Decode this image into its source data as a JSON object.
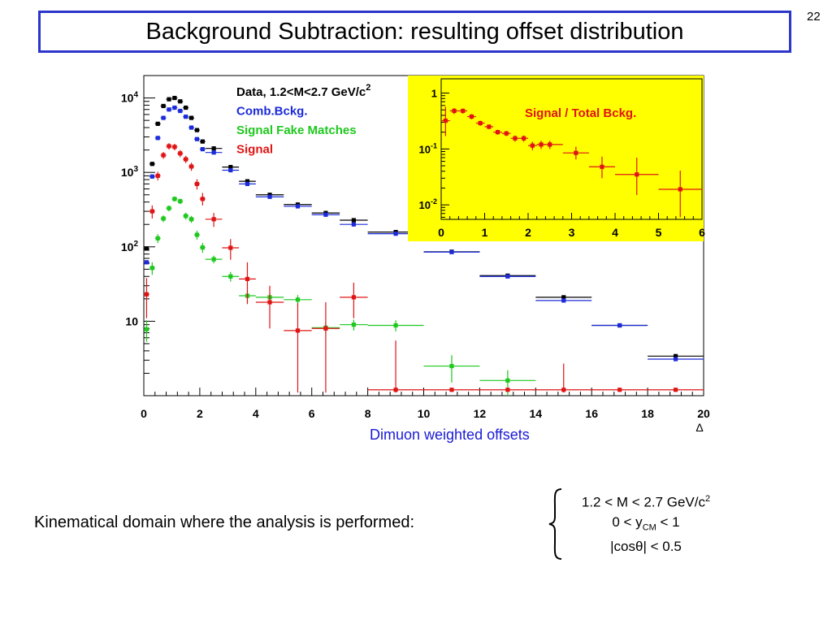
{
  "slide": {
    "title": "Background Subtraction: resulting offset distribution",
    "page_number": "22",
    "x_caption": "Dimuon weighted offsets",
    "caption_color": "#1a1ad6",
    "kinematic_label": "Kinematical domain where the analysis is performed:",
    "cond1_prefix": "1.2 < M < 2.7 GeV/c",
    "cond1_sup": "2",
    "cond2_prefix": "0 < y",
    "cond2_sub": "CM",
    "cond2_suffix": " < 1",
    "cond3": "|cosθ| < 0.5",
    "title_border_color": "#2b35c9"
  },
  "chart_data": [
    {
      "type": "scatter",
      "title": "",
      "xlabel": "Δ",
      "ylabel": "",
      "yscale": "log",
      "xlim": [
        0,
        20
      ],
      "ylim": [
        1.0,
        20000
      ],
      "x_ticks": [
        "0",
        "2",
        "4",
        "6",
        "8",
        "10",
        "12",
        "14",
        "16",
        "18",
        "20"
      ],
      "y_ticks": [
        {
          "value": 10,
          "base": "10",
          "exp": ""
        },
        {
          "value": 100,
          "base": "10",
          "exp": "2"
        },
        {
          "value": 1000,
          "base": "10",
          "exp": "3"
        },
        {
          "value": 10000,
          "base": "10",
          "exp": "4"
        }
      ],
      "legend_position": "top-center",
      "legend": [
        {
          "label": "Data, 1.2<M<2.7 GeV/c",
          "sup": "2",
          "color": "#000000"
        },
        {
          "label": "Comb.Bckg.",
          "sup": "",
          "color": "#1c2bd9"
        },
        {
          "label": "Signal Fake Matches",
          "sup": "",
          "color": "#1ec81e"
        },
        {
          "label": "Signal",
          "sup": "",
          "color": "#e01414"
        }
      ],
      "series": [
        {
          "name": "Data, 1.2<M<2.7 GeV/c²",
          "color": "#000000",
          "points": [
            {
              "x": 0.1,
              "y": 95
            },
            {
              "x": 0.3,
              "y": 1300
            },
            {
              "x": 0.5,
              "y": 4500
            },
            {
              "x": 0.7,
              "y": 7800
            },
            {
              "x": 0.9,
              "y": 9600
            },
            {
              "x": 1.1,
              "y": 10000
            },
            {
              "x": 1.3,
              "y": 9000
            },
            {
              "x": 1.5,
              "y": 7400
            },
            {
              "x": 1.7,
              "y": 5400
            },
            {
              "x": 1.9,
              "y": 3700
            },
            {
              "x": 2.1,
              "y": 2600
            },
            {
              "x": 2.5,
              "y": 2100,
              "dx": 0.3
            },
            {
              "x": 3.1,
              "y": 1180,
              "dx": 0.3
            },
            {
              "x": 3.7,
              "y": 760,
              "dx": 0.3
            },
            {
              "x": 4.5,
              "y": 500,
              "dx": 0.5
            },
            {
              "x": 5.5,
              "y": 370,
              "dx": 0.5
            },
            {
              "x": 6.5,
              "y": 285,
              "dx": 0.5
            },
            {
              "x": 7.5,
              "y": 228,
              "dx": 0.5
            },
            {
              "x": 9.0,
              "y": 158,
              "dx": 1.0
            },
            {
              "x": 11.0,
              "y": 86,
              "dx": 1.0
            },
            {
              "x": 13.0,
              "y": 41,
              "dx": 1.0
            },
            {
              "x": 15.0,
              "y": 21,
              "dx": 1.0
            },
            {
              "x": 17.0,
              "y": 8.8,
              "dx": 1.0
            },
            {
              "x": 19.0,
              "y": 3.4,
              "dx": 1.0
            }
          ]
        },
        {
          "name": "Comb.Bckg.",
          "color": "#1c2bd9",
          "points": [
            {
              "x": 0.1,
              "y": 62
            },
            {
              "x": 0.3,
              "y": 880
            },
            {
              "x": 0.5,
              "y": 2900
            },
            {
              "x": 0.7,
              "y": 5400
            },
            {
              "x": 0.9,
              "y": 7000
            },
            {
              "x": 1.1,
              "y": 7400
            },
            {
              "x": 1.3,
              "y": 6700
            },
            {
              "x": 1.5,
              "y": 5600
            },
            {
              "x": 1.7,
              "y": 4000
            },
            {
              "x": 1.9,
              "y": 2800
            },
            {
              "x": 2.1,
              "y": 2050
            },
            {
              "x": 2.5,
              "y": 1850,
              "dx": 0.3
            },
            {
              "x": 3.1,
              "y": 1070,
              "dx": 0.3
            },
            {
              "x": 3.7,
              "y": 700,
              "dx": 0.3
            },
            {
              "x": 4.5,
              "y": 470,
              "dx": 0.5
            },
            {
              "x": 5.5,
              "y": 350,
              "dx": 0.5
            },
            {
              "x": 6.5,
              "y": 270,
              "dx": 0.5
            },
            {
              "x": 7.5,
              "y": 200,
              "dx": 0.5
            },
            {
              "x": 9.0,
              "y": 150,
              "dx": 1.0
            },
            {
              "x": 11.0,
              "y": 85,
              "dx": 1.0
            },
            {
              "x": 13.0,
              "y": 40,
              "dx": 1.0
            },
            {
              "x": 15.0,
              "y": 19,
              "dx": 1.0
            },
            {
              "x": 17.0,
              "y": 8.8,
              "dx": 1.0
            },
            {
              "x": 19.0,
              "y": 3.1,
              "dx": 1.0
            }
          ]
        },
        {
          "name": "Signal Fake Matches",
          "color": "#1ec81e",
          "points": [
            {
              "x": 0.1,
              "y": 7.8,
              "eu": 2.5,
              "ed": 2.5
            },
            {
              "x": 0.3,
              "y": 52,
              "eu": 10,
              "ed": 10
            },
            {
              "x": 0.5,
              "y": 130,
              "eu": 18,
              "ed": 18
            },
            {
              "x": 0.7,
              "y": 240,
              "eu": 25,
              "ed": 25
            },
            {
              "x": 0.9,
              "y": 330,
              "eu": 30,
              "ed": 30
            },
            {
              "x": 1.1,
              "y": 440,
              "eu": 35,
              "ed": 35
            },
            {
              "x": 1.3,
              "y": 410,
              "eu": 35,
              "ed": 35
            },
            {
              "x": 1.5,
              "y": 260,
              "eu": 28,
              "ed": 28
            },
            {
              "x": 1.7,
              "y": 235,
              "eu": 25,
              "ed": 25
            },
            {
              "x": 1.9,
              "y": 145,
              "eu": 20,
              "ed": 20
            },
            {
              "x": 2.1,
              "y": 98,
              "eu": 15,
              "ed": 15
            },
            {
              "x": 2.5,
              "y": 68,
              "dx": 0.3,
              "eu": 8,
              "ed": 8
            },
            {
              "x": 3.1,
              "y": 40,
              "dx": 0.3,
              "eu": 6,
              "ed": 6
            },
            {
              "x": 3.7,
              "y": 22,
              "dx": 0.3,
              "eu": 4,
              "ed": 4
            },
            {
              "x": 4.5,
              "y": 21,
              "dx": 0.5,
              "eu": 3,
              "ed": 3
            },
            {
              "x": 5.5,
              "y": 19.5,
              "dx": 0.5,
              "eu": 3,
              "ed": 3
            },
            {
              "x": 6.5,
              "y": 8.2,
              "dx": 0.5,
              "eu": 1.5,
              "ed": 1.5
            },
            {
              "x": 7.5,
              "y": 9.0,
              "dx": 0.5,
              "eu": 1.5,
              "ed": 1.5
            },
            {
              "x": 9.0,
              "y": 8.8,
              "dx": 1.0,
              "eu": 1.5,
              "ed": 1.5
            },
            {
              "x": 11.0,
              "y": 2.5,
              "dx": 1.0,
              "eu": 1.0,
              "ed": 1.0
            },
            {
              "x": 13.0,
              "y": 1.6,
              "dx": 1.0,
              "eu": 0.6,
              "ed": 0.6
            }
          ]
        },
        {
          "name": "Signal",
          "color": "#e01414",
          "points": [
            {
              "x": 0.1,
              "y": 23,
              "eu": 15,
              "ed": 12
            },
            {
              "x": 0.3,
              "y": 300,
              "eu": 60,
              "ed": 60
            },
            {
              "x": 0.5,
              "y": 900,
              "eu": 120,
              "ed": 120
            },
            {
              "x": 0.7,
              "y": 1700,
              "eu": 180,
              "ed": 180
            },
            {
              "x": 0.9,
              "y": 2250,
              "eu": 220,
              "ed": 220
            },
            {
              "x": 1.1,
              "y": 2200,
              "eu": 220,
              "ed": 220
            },
            {
              "x": 1.3,
              "y": 1800,
              "eu": 200,
              "ed": 200
            },
            {
              "x": 1.5,
              "y": 1500,
              "eu": 170,
              "ed": 170
            },
            {
              "x": 1.7,
              "y": 1200,
              "eu": 150,
              "ed": 150
            },
            {
              "x": 1.9,
              "y": 700,
              "eu": 110,
              "ed": 110
            },
            {
              "x": 2.1,
              "y": 440,
              "eu": 90,
              "ed": 80
            },
            {
              "x": 2.5,
              "y": 235,
              "dx": 0.3,
              "eu": 50,
              "ed": 50
            },
            {
              "x": 3.1,
              "y": 97,
              "dx": 0.3,
              "eu": 30,
              "ed": 30
            },
            {
              "x": 3.7,
              "y": 37,
              "dx": 0.3,
              "eu": 25,
              "ed": 20
            },
            {
              "x": 4.5,
              "y": 18,
              "dx": 0.5,
              "eu": 12,
              "ed": 10
            },
            {
              "x": 5.5,
              "y": 7.5,
              "dx": 0.5,
              "eu": 10,
              "ed": 6.4
            },
            {
              "x": 6.5,
              "y": 8.0,
              "dx": 0.5,
              "eu": 10,
              "ed": 6.9
            },
            {
              "x": 7.5,
              "y": 21,
              "dx": 0.5,
              "eu": 12,
              "ed": 10
            },
            {
              "x": 9.0,
              "y": 1.2,
              "dx": 1.0,
              "eu": 4.3,
              "ed": 0.1
            },
            {
              "x": 11.0,
              "y": 1.2,
              "dx": 1.0
            },
            {
              "x": 13.0,
              "y": 1.2,
              "dx": 1.0
            },
            {
              "x": 15.0,
              "y": 1.2,
              "dx": 1.0,
              "eu": 1.5,
              "ed": 0.1
            },
            {
              "x": 17.0,
              "y": 1.2,
              "dx": 1.0
            },
            {
              "x": 19.0,
              "y": 1.2,
              "dx": 1.0
            }
          ]
        }
      ]
    },
    {
      "type": "scatter",
      "title": "Signal / Total Bckg.",
      "xlabel": "",
      "ylabel": "",
      "yscale": "log",
      "xlim": [
        0,
        6
      ],
      "ylim": [
        0.0055,
        1.8
      ],
      "background": "#ffff00",
      "x_ticks": [
        "0",
        "1",
        "2",
        "3",
        "4",
        "5",
        "6"
      ],
      "y_ticks": [
        {
          "value": 1,
          "base": "1",
          "exp": ""
        },
        {
          "value": 0.1,
          "base": "10",
          "exp": "-1"
        },
        {
          "value": 0.01,
          "base": "10",
          "exp": "-2"
        }
      ],
      "series": [
        {
          "name": "",
          "color": "#e01414",
          "points": [
            {
              "x": 0.1,
              "y": 0.32,
              "eu": 0.25,
              "ed": 0.15
            },
            {
              "x": 0.3,
              "y": 0.48,
              "eu": 0.06,
              "ed": 0.06
            },
            {
              "x": 0.5,
              "y": 0.48,
              "eu": 0.05,
              "ed": 0.05
            },
            {
              "x": 0.7,
              "y": 0.38,
              "eu": 0.04,
              "ed": 0.04
            },
            {
              "x": 0.9,
              "y": 0.29,
              "eu": 0.03,
              "ed": 0.03
            },
            {
              "x": 1.1,
              "y": 0.25,
              "eu": 0.025,
              "ed": 0.025
            },
            {
              "x": 1.3,
              "y": 0.2,
              "eu": 0.02,
              "ed": 0.02
            },
            {
              "x": 1.5,
              "y": 0.19,
              "eu": 0.02,
              "ed": 0.02
            },
            {
              "x": 1.7,
              "y": 0.155,
              "eu": 0.02,
              "ed": 0.02
            },
            {
              "x": 1.9,
              "y": 0.155,
              "eu": 0.02,
              "ed": 0.02
            },
            {
              "x": 2.1,
              "y": 0.115,
              "eu": 0.02,
              "ed": 0.02
            },
            {
              "x": 2.3,
              "y": 0.12,
              "eu": 0.02,
              "ed": 0.02
            },
            {
              "x": 2.5,
              "y": 0.12,
              "dx": 0.3,
              "eu": 0.02,
              "ed": 0.02
            },
            {
              "x": 3.1,
              "y": 0.085,
              "dx": 0.3,
              "eu": 0.025,
              "ed": 0.02
            },
            {
              "x": 3.7,
              "y": 0.048,
              "dx": 0.3,
              "eu": 0.025,
              "ed": 0.018
            },
            {
              "x": 4.5,
              "y": 0.035,
              "dx": 0.5,
              "eu": 0.035,
              "ed": 0.02
            },
            {
              "x": 5.5,
              "y": 0.019,
              "dx": 0.5,
              "eu": 0.022,
              "ed": 0.013
            }
          ]
        }
      ]
    }
  ]
}
